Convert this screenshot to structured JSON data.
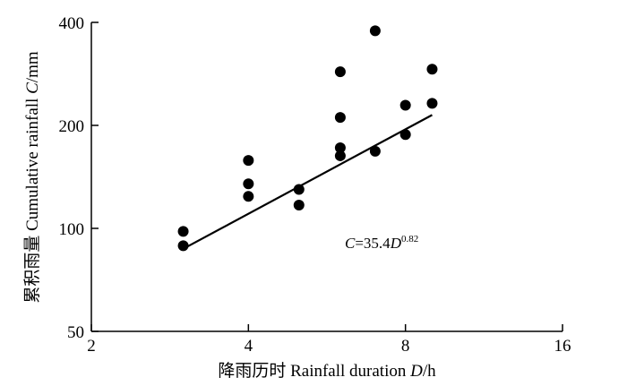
{
  "chart_data": {
    "type": "scatter",
    "xlabel": {
      "prefix": "降雨历时 Rainfall duration ",
      "var": "D",
      "unit": "/h"
    },
    "ylabel": {
      "prefix": "累积雨量 Cumulative rainfall ",
      "var": "C",
      "unit": "/mm"
    },
    "x_scale": "log2",
    "y_scale": "log",
    "xlim": [
      2,
      16
    ],
    "ylim": [
      50,
      400
    ],
    "x_ticks": [
      2,
      4,
      8,
      16
    ],
    "y_ticks": [
      50,
      100,
      200,
      400
    ],
    "points": [
      {
        "x": 3,
        "y": 98
      },
      {
        "x": 3,
        "y": 89
      },
      {
        "x": 4,
        "y": 158
      },
      {
        "x": 4,
        "y": 135
      },
      {
        "x": 4,
        "y": 124
      },
      {
        "x": 5,
        "y": 130
      },
      {
        "x": 5,
        "y": 117
      },
      {
        "x": 6,
        "y": 287
      },
      {
        "x": 6,
        "y": 211
      },
      {
        "x": 6,
        "y": 172
      },
      {
        "x": 6,
        "y": 163
      },
      {
        "x": 7,
        "y": 378
      },
      {
        "x": 7,
        "y": 168
      },
      {
        "x": 8,
        "y": 229
      },
      {
        "x": 8,
        "y": 188
      },
      {
        "x": 9,
        "y": 292
      },
      {
        "x": 9,
        "y": 232
      }
    ],
    "fit": {
      "coef": 35.4,
      "exp": 0.82,
      "x_range": [
        3,
        9
      ]
    },
    "annotation": {
      "lhs": "C",
      "eq": "=35.4",
      "var": "D",
      "exp": "0.82"
    }
  }
}
